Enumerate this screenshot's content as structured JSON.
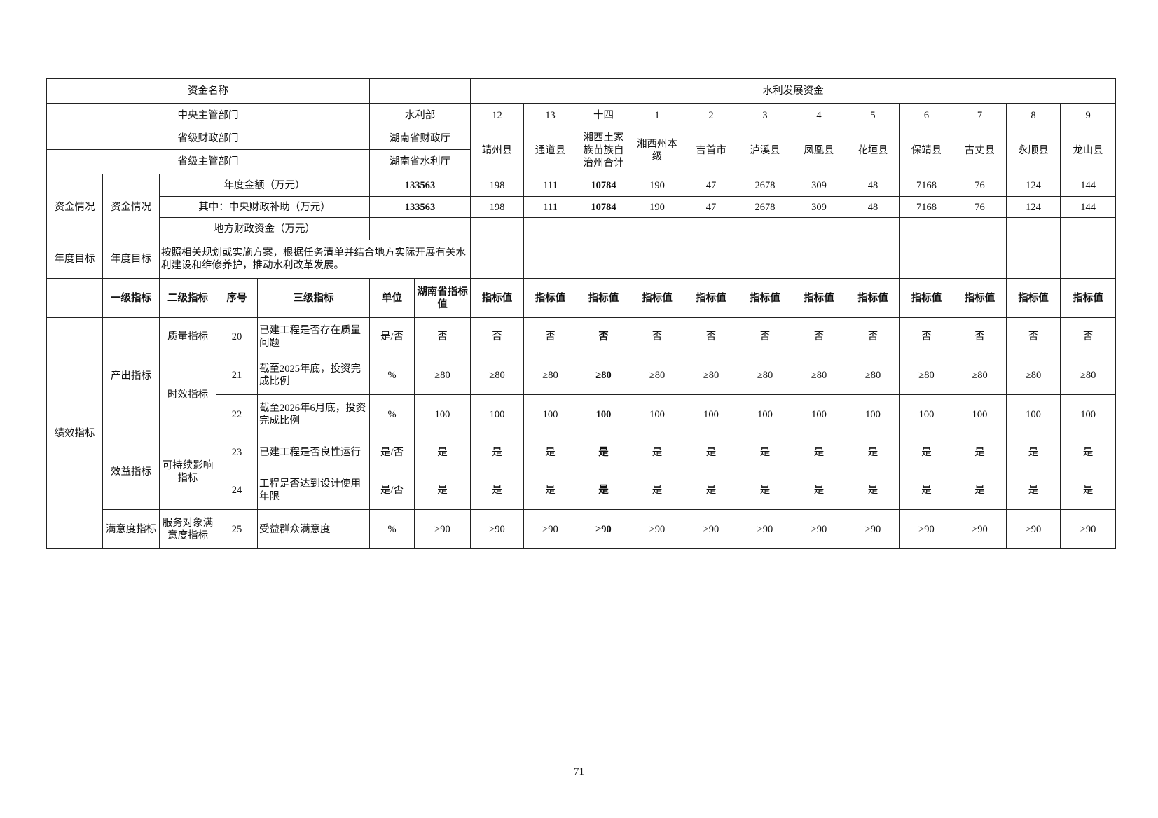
{
  "header": {
    "fund_name_label": "资金名称",
    "fund_name_value": "",
    "fund_program": "水利发展资金",
    "central_dept_label": "中央主管部门",
    "central_dept_value": "水利部",
    "prov_finance_label": "省级财政部门",
    "prov_finance_value": "湖南省财政厅",
    "prov_dept_label": "省级主管部门",
    "prov_dept_value": "湖南省水利厅"
  },
  "columns": [
    {
      "no": "12",
      "name": "靖州县",
      "annual": "198",
      "central": "198",
      "bold": false
    },
    {
      "no": "13",
      "name": "通道县",
      "annual": "111",
      "central": "111",
      "bold": false
    },
    {
      "no": "十四",
      "name": "湘西土家族苗族自治州合计",
      "annual": "10784",
      "central": "10784",
      "bold": true
    },
    {
      "no": "1",
      "name": "湘西州本级",
      "annual": "190",
      "central": "190",
      "bold": false
    },
    {
      "no": "2",
      "name": "吉首市",
      "annual": "47",
      "central": "47",
      "bold": false
    },
    {
      "no": "3",
      "name": "泸溪县",
      "annual": "2678",
      "central": "2678",
      "bold": false
    },
    {
      "no": "4",
      "name": "凤凰县",
      "annual": "309",
      "central": "309",
      "bold": false
    },
    {
      "no": "5",
      "name": "花垣县",
      "annual": "48",
      "central": "48",
      "bold": false
    },
    {
      "no": "6",
      "name": "保靖县",
      "annual": "7168",
      "central": "7168",
      "bold": false
    },
    {
      "no": "7",
      "name": "古丈县",
      "annual": "76",
      "central": "76",
      "bold": false
    },
    {
      "no": "8",
      "name": "永顺县",
      "annual": "124",
      "central": "124",
      "bold": false
    },
    {
      "no": "9",
      "name": "龙山县",
      "annual": "144",
      "central": "144",
      "bold": false
    }
  ],
  "funding": {
    "section_label": "资金情况",
    "sub_label": "资金情况",
    "annual_label": "年度金额（万元）",
    "annual_total": "133563",
    "central_label": "其中：中央财政补助（万元）",
    "central_total": "133563",
    "local_label": "地方财政资金（万元）",
    "local_total": ""
  },
  "goal": {
    "label": "年度目标",
    "sub_label": "年度目标",
    "text": "按照相关规划或实施方案，根据任务清单并结合地方实际开展有关水利建设和维修养护，推动水利改革发展。"
  },
  "indicator_header": {
    "level1": "一级指标",
    "level2": "二级指标",
    "seq": "序号",
    "level3": "三级指标",
    "unit": "单位",
    "province_value": "湖南省指标值",
    "value": "指标值"
  },
  "performance_label": "绩效指标",
  "groups": [
    {
      "level1": "产出指标",
      "subgroups": [
        {
          "level2": "质量指标",
          "rows": [
            {
              "seq": "20",
              "level3": "已建工程是否存在质量问题",
              "unit": "是/否",
              "province": "否",
              "value": "否"
            }
          ]
        },
        {
          "level2": "时效指标",
          "rows": [
            {
              "seq": "21",
              "level3": "截至2025年底，投资完成比例",
              "unit": "%",
              "province": "≥80",
              "value": "≥80"
            },
            {
              "seq": "22",
              "level3": "截至2026年6月底，投资完成比例",
              "unit": "%",
              "province": "100",
              "value": "100"
            }
          ]
        }
      ]
    },
    {
      "level1": "效益指标",
      "subgroups": [
        {
          "level2": "可持续影响指标",
          "rows": [
            {
              "seq": "23",
              "level3": "已建工程是否良性运行",
              "unit": "是/否",
              "province": "是",
              "value": "是"
            },
            {
              "seq": "24",
              "level3": "工程是否达到设计使用年限",
              "unit": "是/否",
              "province": "是",
              "value": "是"
            }
          ]
        }
      ]
    },
    {
      "level1": "满意度指标",
      "subgroups": [
        {
          "level2": "服务对象满意度指标",
          "rows": [
            {
              "seq": "25",
              "level3": "受益群众满意度",
              "unit": "%",
              "province": "≥90",
              "value": "≥90"
            }
          ]
        }
      ]
    }
  ],
  "page_number": "71"
}
